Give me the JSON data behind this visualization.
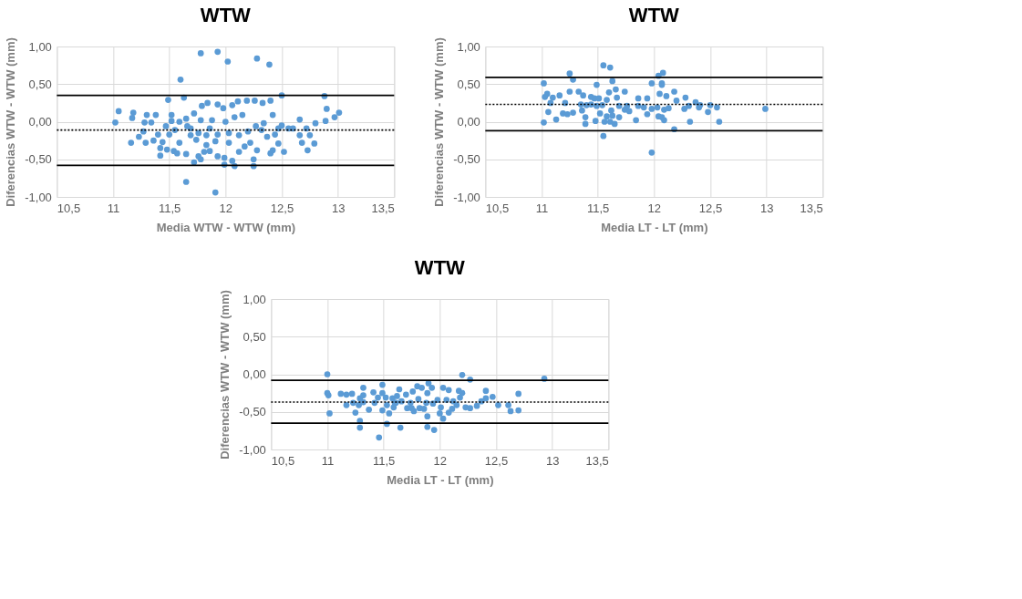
{
  "chart_data": [
    {
      "type": "scatter",
      "title": "WTW",
      "xlabel": "Media WTW - WTW (mm)",
      "ylabel": "Diferencias WTW - WTW (mm)",
      "marker": "circle",
      "grid": true,
      "xlim": [
        10.5,
        13.5
      ],
      "xticks": [
        {
          "value": 10.5,
          "label": "10,5"
        },
        11,
        {
          "value": 11.5,
          "label": "11,5"
        },
        12,
        {
          "value": 12.5,
          "label": "12,5"
        },
        13,
        {
          "value": 13.5,
          "label": "13,5"
        }
      ],
      "ylim": [
        -1,
        1
      ],
      "yticks": [
        {
          "value": -1,
          "label": "-1,00"
        },
        {
          "value": -0.5,
          "label": "-0,50"
        },
        {
          "value": 0,
          "label": "0,00"
        },
        {
          "value": 0.5,
          "label": "0,50"
        },
        {
          "value": 1,
          "label": "1,00"
        }
      ],
      "ref_lines": [
        {
          "axis": "y",
          "value": 0.35,
          "color": "#000000",
          "line_style": "solid"
        },
        {
          "axis": "y",
          "value": -0.11,
          "color": "#000000",
          "line_style": "dotted"
        },
        {
          "axis": "y",
          "value": -0.58,
          "color": "#000000",
          "line_style": "solid"
        }
      ],
      "series": [
        {
          "color": "#5b9bd5",
          "x": [
            11.78,
            11.93,
            12.02,
            12.28,
            12.39,
            11.6,
            11.63,
            11.49,
            12.5,
            12.88,
            12.9,
            13.01,
            12.97,
            12.89,
            12.8,
            12.66,
            11.05,
            11.02,
            11.18,
            11.17,
            11.3,
            11.38,
            11.28,
            11.34,
            11.16,
            11.23,
            11.29,
            11.27,
            11.36,
            11.42,
            11.42,
            11.48,
            11.54,
            11.57,
            11.65,
            11.65,
            11.91,
            11.72,
            11.78,
            11.81,
            11.93,
            11.99,
            12.08,
            12.06,
            12.12,
            12.25,
            12.25,
            12.28,
            12.4,
            12.42,
            12.52,
            12.47,
            12.66,
            12.68,
            12.73,
            12.79,
            12.75,
            12.72,
            12.6,
            12.5,
            12.42,
            12.4,
            12.33,
            12.26,
            12.19,
            12.11,
            12.06,
            11.98,
            11.93,
            11.84,
            11.79,
            11.72,
            11.65,
            11.59,
            11.52,
            11.52,
            11.47,
            11.55,
            11.69,
            11.76,
            11.86,
            11.93,
            12.03,
            12.12,
            12.2,
            12.27,
            12.34,
            12.22,
            12.17,
            11.83,
            11.74,
            11.91,
            12.03,
            12.08,
            12.15,
            12.0,
            11.88,
            11.78,
            11.66,
            11.83,
            11.69,
            11.5,
            11.4,
            11.44,
            11.59,
            12.37,
            12.44,
            12.47,
            12.56,
            12.32,
            11.99,
            11.76,
            11.86
          ],
          "values": [
            0.91,
            0.93,
            0.8,
            0.84,
            0.76,
            0.56,
            0.32,
            0.29,
            0.35,
            0.34,
            0.17,
            0.12,
            0.06,
            0.01,
            -0.02,
            0.03,
            0.14,
            -0.01,
            0.12,
            0.05,
            0.09,
            0.09,
            -0.01,
            -0.01,
            -0.28,
            -0.2,
            -0.28,
            -0.13,
            -0.25,
            -0.35,
            -0.45,
            -0.37,
            -0.39,
            -0.42,
            -0.43,
            -0.8,
            -0.94,
            -0.54,
            -0.5,
            -0.4,
            -0.46,
            -0.57,
            -0.59,
            -0.52,
            -0.4,
            -0.5,
            -0.59,
            -0.38,
            -0.42,
            -0.38,
            -0.4,
            -0.29,
            -0.18,
            -0.28,
            -0.38,
            -0.29,
            -0.18,
            -0.09,
            -0.09,
            -0.05,
            0.09,
            0.28,
            0.25,
            0.28,
            0.28,
            0.27,
            0.22,
            0.18,
            0.23,
            0.25,
            0.21,
            0.11,
            0.04,
            0.0,
            0.09,
            0.01,
            -0.06,
            -0.11,
            -0.09,
            -0.15,
            -0.09,
            -0.17,
            -0.15,
            -0.18,
            -0.13,
            -0.06,
            -0.02,
            -0.28,
            -0.33,
            -0.31,
            -0.24,
            -0.26,
            -0.28,
            0.06,
            0.09,
            0.0,
            0.02,
            0.02,
            -0.06,
            -0.18,
            -0.18,
            -0.17,
            -0.17,
            -0.27,
            -0.28,
            -0.2,
            -0.17,
            -0.09,
            -0.09,
            -0.11,
            -0.48,
            -0.46,
            -0.39
          ]
        }
      ]
    },
    {
      "type": "scatter",
      "title": "WTW",
      "xlabel": "Media LT - LT (mm)",
      "ylabel": "Diferencias WTW - WTW (mm)",
      "marker": "circle",
      "grid": true,
      "xlim": [
        10.5,
        13.5
      ],
      "xticks": [
        {
          "value": 10.5,
          "label": "10,5"
        },
        11,
        {
          "value": 11.5,
          "label": "11,5"
        },
        12,
        {
          "value": 12.5,
          "label": "12,5"
        },
        13,
        {
          "value": 13.5,
          "label": "13,5"
        }
      ],
      "ylim": [
        -1,
        1
      ],
      "yticks": [
        {
          "value": -1,
          "label": "-1,00"
        },
        {
          "value": -0.5,
          "label": "-0,50"
        },
        {
          "value": 0,
          "label": "0,00"
        },
        {
          "value": 0.5,
          "label": "0,50"
        },
        {
          "value": 1,
          "label": "1,00"
        }
      ],
      "ref_lines": [
        {
          "axis": "y",
          "value": 0.59,
          "color": "#000000",
          "line_style": "solid"
        },
        {
          "axis": "y",
          "value": 0.23,
          "color": "#000000",
          "line_style": "dotted"
        },
        {
          "axis": "y",
          "value": -0.12,
          "color": "#000000",
          "line_style": "solid"
        }
      ],
      "series": [
        {
          "color": "#5b9bd5",
          "x": [
            11.55,
            11.61,
            11.25,
            11.28,
            12.08,
            12.04,
            11.98,
            12.07,
            12.07,
            11.02,
            11.63,
            11.49,
            11.05,
            11.03,
            11.1,
            11.16,
            11.25,
            11.33,
            11.37,
            11.44,
            11.6,
            11.66,
            11.74,
            11.51,
            11.58,
            11.67,
            11.86,
            11.94,
            12.05,
            12.11,
            12.18,
            12.2,
            12.28,
            12.37,
            12.41,
            12.5,
            12.56,
            12.99,
            12.48,
            12.58,
            12.32,
            12.18,
            11.55,
            11.98,
            11.02,
            11.13,
            11.06,
            11.19,
            11.23,
            11.28,
            11.08,
            11.21,
            11.35,
            11.4,
            11.36,
            11.39,
            11.39,
            11.48,
            11.52,
            11.56,
            11.58,
            11.61,
            11.65,
            11.63,
            11.69,
            11.62,
            11.69,
            11.76,
            11.74,
            11.78,
            11.84,
            11.86,
            11.91,
            11.94,
            11.98,
            12.03,
            12.04,
            12.07,
            12.09,
            12.09,
            12.13,
            12.27,
            12.31,
            12.4,
            11.49,
            11.54,
            11.44,
            11.47
          ],
          "values": [
            0.75,
            0.72,
            0.64,
            0.56,
            0.65,
            0.61,
            0.51,
            0.51,
            0.49,
            0.51,
            0.54,
            0.49,
            0.37,
            0.33,
            0.32,
            0.35,
            0.4,
            0.4,
            0.35,
            0.33,
            0.39,
            0.43,
            0.4,
            0.31,
            0.29,
            0.32,
            0.31,
            0.31,
            0.37,
            0.34,
            0.4,
            0.28,
            0.32,
            0.26,
            0.22,
            0.22,
            0.19,
            0.17,
            0.13,
            0.0,
            0.0,
            -0.1,
            -0.19,
            -0.41,
            -0.01,
            0.03,
            0.13,
            0.11,
            0.1,
            0.12,
            0.25,
            0.25,
            0.23,
            0.22,
            0.15,
            0.06,
            -0.03,
            0.01,
            0.11,
            0.0,
            0.07,
            0.0,
            -0.03,
            0.08,
            0.06,
            0.15,
            0.21,
            0.21,
            0.16,
            0.14,
            0.02,
            0.21,
            0.19,
            0.1,
            0.17,
            0.19,
            0.07,
            0.06,
            0.02,
            0.16,
            0.18,
            0.17,
            0.21,
            0.19,
            0.21,
            0.22,
            0.23,
            0.31
          ]
        }
      ]
    },
    {
      "type": "scatter",
      "title": "WTW",
      "xlabel": "Media LT - LT (mm)",
      "ylabel": "Diferencias WTW - WTW (mm)",
      "marker": "circle",
      "grid": true,
      "xlim": [
        10.5,
        13.5
      ],
      "xticks": [
        {
          "value": 10.5,
          "label": "10,5"
        },
        11,
        {
          "value": 11.5,
          "label": "11,5"
        },
        12,
        {
          "value": 12.5,
          "label": "12,5"
        },
        13,
        {
          "value": 13.5,
          "label": "13,5"
        }
      ],
      "ylim": [
        -1,
        1
      ],
      "yticks": [
        {
          "value": -1,
          "label": "-1,00"
        },
        {
          "value": -0.5,
          "label": "-0,50"
        },
        {
          "value": 0,
          "label": "0,00"
        },
        {
          "value": 0.5,
          "label": "0,50"
        },
        {
          "value": 1,
          "label": "1,00"
        }
      ],
      "ref_lines": [
        {
          "axis": "y",
          "value": -0.08,
          "color": "#000000",
          "line_style": "solid"
        },
        {
          "axis": "y",
          "value": -0.37,
          "color": "#000000",
          "line_style": "dotted"
        },
        {
          "axis": "y",
          "value": -0.65,
          "color": "#000000",
          "line_style": "solid"
        }
      ],
      "series": [
        {
          "color": "#5b9bd5",
          "x": [
            11.0,
            11.0,
            11.01,
            11.02,
            11.12,
            11.17,
            11.22,
            11.17,
            11.23,
            11.25,
            11.28,
            11.29,
            11.29,
            11.29,
            11.32,
            11.32,
            11.32,
            11.37,
            11.41,
            11.42,
            11.45,
            11.46,
            11.49,
            11.49,
            11.49,
            11.52,
            11.53,
            11.53,
            11.55,
            11.58,
            11.59,
            11.61,
            11.62,
            11.64,
            11.65,
            11.66,
            11.7,
            11.71,
            11.74,
            11.76,
            11.77,
            11.8,
            11.81,
            11.82,
            11.84,
            11.86,
            11.88,
            11.89,
            11.89,
            11.89,
            11.9,
            11.93,
            11.94,
            11.95,
            11.98,
            12.0,
            12.01,
            12.03,
            12.03,
            12.06,
            12.08,
            12.08,
            12.11,
            12.12,
            12.15,
            12.17,
            12.18,
            12.2,
            12.2,
            12.23,
            12.27,
            12.27,
            12.33,
            12.37,
            12.41,
            12.41,
            12.47,
            12.52,
            12.61,
            12.63,
            12.7,
            12.7,
            12.93,
            11.75,
            11.6
          ],
          "values": [
            0.0,
            -0.25,
            -0.28,
            -0.52,
            -0.26,
            -0.27,
            -0.26,
            -0.41,
            -0.38,
            -0.51,
            -0.41,
            -0.62,
            -0.71,
            -0.32,
            -0.28,
            -0.18,
            -0.37,
            -0.47,
            -0.24,
            -0.38,
            -0.31,
            -0.84,
            -0.14,
            -0.25,
            -0.48,
            -0.31,
            -0.41,
            -0.66,
            -0.52,
            -0.32,
            -0.44,
            -0.38,
            -0.29,
            -0.2,
            -0.71,
            -0.36,
            -0.27,
            -0.45,
            -0.38,
            -0.23,
            -0.49,
            -0.16,
            -0.33,
            -0.45,
            -0.18,
            -0.46,
            -0.38,
            -0.25,
            -0.56,
            -0.7,
            -0.12,
            -0.18,
            -0.39,
            -0.74,
            -0.34,
            -0.52,
            -0.44,
            -0.59,
            -0.18,
            -0.34,
            -0.21,
            -0.51,
            -0.46,
            -0.36,
            -0.41,
            -0.22,
            -0.31,
            -0.01,
            -0.25,
            -0.44,
            -0.07,
            -0.45,
            -0.42,
            -0.36,
            -0.22,
            -0.32,
            -0.3,
            -0.41,
            -0.41,
            -0.49,
            -0.26,
            -0.48,
            -0.06,
            -0.45,
            -0.38
          ]
        }
      ]
    }
  ]
}
